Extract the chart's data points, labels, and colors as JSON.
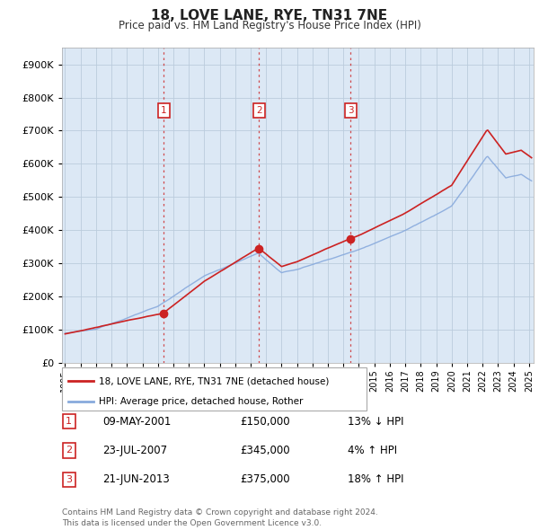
{
  "title": "18, LOVE LANE, RYE, TN31 7NE",
  "subtitle": "Price paid vs. HM Land Registry's House Price Index (HPI)",
  "legend_line1": "18, LOVE LANE, RYE, TN31 7NE (detached house)",
  "legend_line2": "HPI: Average price, detached house, Rother",
  "footer": "Contains HM Land Registry data © Crown copyright and database right 2024.\nThis data is licensed under the Open Government Licence v3.0.",
  "sale_color": "#cc2222",
  "hpi_color": "#88aadd",
  "vertical_line_color": "#cc2222",
  "chart_bg": "#dce8f5",
  "sales": [
    {
      "date": 2001.37,
      "price": 150000,
      "label": "1"
    },
    {
      "date": 2007.55,
      "price": 345000,
      "label": "2"
    },
    {
      "date": 2013.47,
      "price": 375000,
      "label": "3"
    }
  ],
  "sale_table": [
    {
      "num": "1",
      "date": "09-MAY-2001",
      "price": "£150,000",
      "hpi": "13% ↓ HPI"
    },
    {
      "num": "2",
      "date": "23-JUL-2007",
      "price": "£345,000",
      "hpi": "4% ↑ HPI"
    },
    {
      "num": "3",
      "date": "21-JUN-2013",
      "price": "£375,000",
      "hpi": "18% ↑ HPI"
    }
  ],
  "ylim": [
    0,
    950000
  ],
  "xlim_start": 1994.8,
  "xlim_end": 2025.3,
  "background_color": "#ffffff",
  "grid_color": "#bbccdd"
}
